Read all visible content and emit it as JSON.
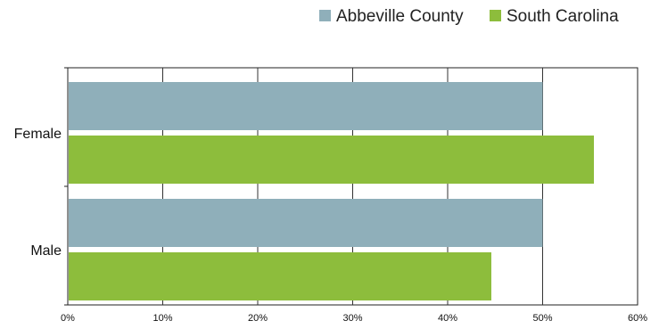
{
  "chart_data": {
    "type": "bar",
    "orientation": "horizontal",
    "categories": [
      "Female",
      "Male"
    ],
    "series": [
      {
        "name": "Abbeville County",
        "color": "#8fafba",
        "values": [
          50.0,
          50.0
        ]
      },
      {
        "name": "South Carolina",
        "color": "#8dbd3c",
        "values": [
          55.4,
          44.6
        ]
      }
    ],
    "x_ticks": [
      "0%",
      "10%",
      "20%",
      "30%",
      "40%",
      "50%",
      "60%"
    ],
    "xlim": [
      0,
      60
    ],
    "value_unit": "%",
    "grid": "vertical",
    "legend_position": "top-right"
  }
}
